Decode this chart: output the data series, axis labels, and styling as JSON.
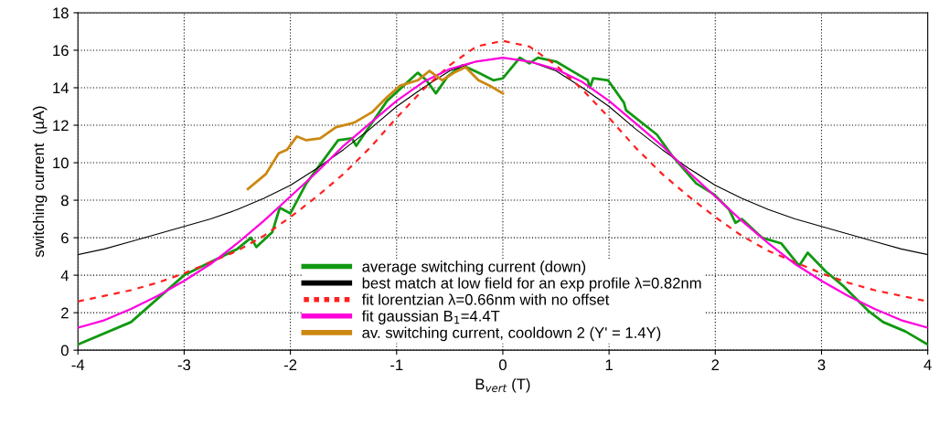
{
  "chart_data": {
    "type": "line",
    "xlabel": "B$_{vert}$ (T)",
    "ylabel": "switching current  (µA)",
    "xlim": [
      -4,
      4
    ],
    "xticks": [
      -4,
      -3,
      -2,
      -1,
      0,
      1,
      2,
      3,
      4
    ],
    "ylim": [
      0,
      18
    ],
    "yticks": [
      0,
      2,
      4,
      6,
      8,
      10,
      12,
      14,
      16,
      18
    ],
    "grid": true,
    "legend": "bottom",
    "series": [
      {
        "name": "average switching current (down)",
        "color": "#119911",
        "line_style": "solid",
        "x": [
          -4,
          -3.5,
          -3,
          -2.5,
          -2.37,
          -2.32,
          -2.17,
          -2.1,
          -2.0,
          -1.85,
          -1.72,
          -1.55,
          -1.42,
          -1.38,
          -1.09,
          -0.8,
          -0.72,
          -0.63,
          -0.52,
          -0.38,
          -0.23,
          -0.09,
          0,
          0.16,
          0.25,
          0.33,
          0.5,
          0.68,
          0.8,
          0.82,
          0.85,
          0.99,
          1.14,
          1.16,
          1.45,
          1.59,
          1.82,
          1.99,
          2.13,
          2.19,
          2.25,
          2.44,
          2.62,
          2.79,
          2.87,
          3.04,
          3.21,
          3.44,
          3.58,
          3.79,
          4
        ],
        "values": [
          0.3,
          1.5,
          4.0,
          5.4,
          6.0,
          5.5,
          6.3,
          7.6,
          7.3,
          8.9,
          9.9,
          11.2,
          11.3,
          10.9,
          13.3,
          14.8,
          14.4,
          13.7,
          14.6,
          15.2,
          14.8,
          14.4,
          14.5,
          15.6,
          15.3,
          15.6,
          15.4,
          14.8,
          14.4,
          14.0,
          14.5,
          14.4,
          13.2,
          12.8,
          11.5,
          10.4,
          8.9,
          8.3,
          7.5,
          6.8,
          7.0,
          6.0,
          5.7,
          4.5,
          5.2,
          4.2,
          3.4,
          2.1,
          1.5,
          1.0,
          0.3
        ]
      },
      {
        "name": "best match at low field for an exp profile λ=0.82nm",
        "color": "#000000",
        "line_style": "solid",
        "x": [
          -4,
          -3.75,
          -3.5,
          -3.25,
          -3,
          -2.75,
          -2.5,
          -2.25,
          -2,
          -1.75,
          -1.5,
          -1.25,
          -1,
          -0.75,
          -0.5,
          -0.25,
          0,
          0.25,
          0.5,
          0.75,
          1,
          1.25,
          1.5,
          1.75,
          2,
          2.25,
          2.5,
          2.75,
          3,
          3.25,
          3.5,
          3.75,
          4
        ],
        "values": [
          5.1,
          5.4,
          5.8,
          6.2,
          6.6,
          7.0,
          7.5,
          8.1,
          8.8,
          9.7,
          10.7,
          11.8,
          13.0,
          14.0,
          14.9,
          15.4,
          15.6,
          15.4,
          14.9,
          14.0,
          13.0,
          11.8,
          10.7,
          9.7,
          8.8,
          8.1,
          7.5,
          7.0,
          6.6,
          6.2,
          5.8,
          5.4,
          5.1
        ]
      },
      {
        "name": "fit lorentzian λ=0.66nm with no offset",
        "color": "#ff2020",
        "line_style": "dashed",
        "x": [
          -4,
          -3.75,
          -3.5,
          -3.25,
          -3,
          -2.75,
          -2.5,
          -2.25,
          -2,
          -1.75,
          -1.5,
          -1.25,
          -1,
          -0.75,
          -0.5,
          -0.25,
          0,
          0.25,
          0.5,
          0.75,
          1,
          1.25,
          1.5,
          1.75,
          2,
          2.25,
          2.5,
          2.75,
          3,
          3.25,
          3.5,
          3.75,
          4
        ],
        "values": [
          2.6,
          2.9,
          3.2,
          3.6,
          4.1,
          4.7,
          5.3,
          6.1,
          7.1,
          8.2,
          9.4,
          10.8,
          12.4,
          13.9,
          15.2,
          16.2,
          16.5,
          16.2,
          15.2,
          13.9,
          12.4,
          10.8,
          9.4,
          8.2,
          7.1,
          6.1,
          5.3,
          4.7,
          4.1,
          3.6,
          3.2,
          2.9,
          2.6
        ]
      },
      {
        "name": "fit gaussian B$_{1}$=4.4T",
        "color": "#ff00dd",
        "line_style": "solid",
        "x": [
          -4,
          -3.75,
          -3.5,
          -3.25,
          -3,
          -2.75,
          -2.5,
          -2.25,
          -2,
          -1.75,
          -1.5,
          -1.25,
          -1,
          -0.75,
          -0.5,
          -0.25,
          0,
          0.25,
          0.5,
          0.75,
          1,
          1.25,
          1.5,
          1.75,
          2,
          2.25,
          2.5,
          2.75,
          3,
          3.25,
          3.5,
          3.75,
          4
        ],
        "values": [
          1.2,
          1.6,
          2.2,
          2.9,
          3.7,
          4.6,
          5.7,
          6.9,
          8.2,
          9.5,
          10.9,
          12.1,
          13.3,
          14.3,
          15.0,
          15.4,
          15.6,
          15.4,
          15.0,
          14.3,
          13.3,
          12.1,
          10.9,
          9.5,
          8.2,
          6.9,
          5.7,
          4.6,
          3.7,
          2.9,
          2.2,
          1.6,
          1.2
        ]
      },
      {
        "name": "av. switching current, cooldown 2 (Y' = 1.4Y)",
        "color": "#cc8811",
        "line_style": "solid",
        "x": [
          -2.4,
          -2.23,
          -2.11,
          -2.03,
          -1.94,
          -1.85,
          -1.72,
          -1.57,
          -1.42,
          -1.38,
          -1.23,
          -1.09,
          -0.97,
          -0.8,
          -0.69,
          -0.57,
          -0.46,
          -0.35,
          -0.23,
          -0.12,
          0
        ],
        "values": [
          8.6,
          9.4,
          10.5,
          10.7,
          11.4,
          11.2,
          11.3,
          11.9,
          12.1,
          12.2,
          12.7,
          13.5,
          14.1,
          14.4,
          14.9,
          14.4,
          14.8,
          15.1,
          14.4,
          14.1,
          13.7
        ]
      }
    ]
  }
}
